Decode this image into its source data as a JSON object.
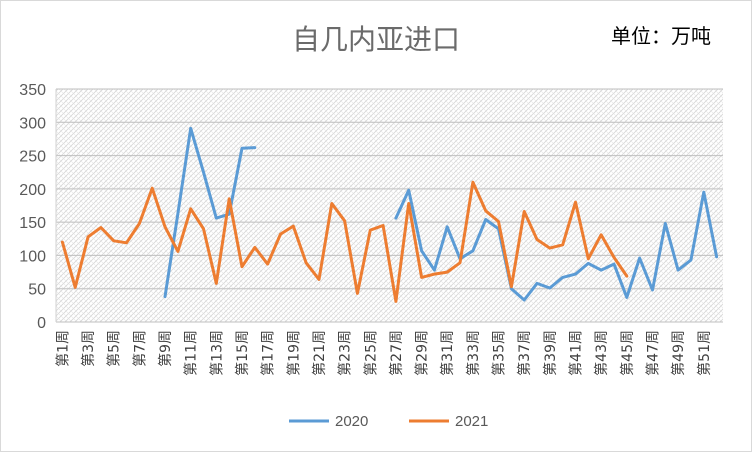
{
  "chart_data": {
    "type": "line",
    "title": "自几内亚进口",
    "unit_label": "单位：万吨",
    "ylim": [
      0,
      350
    ],
    "yticks": [
      0,
      50,
      100,
      150,
      200,
      250,
      300,
      350
    ],
    "grid": true,
    "legend_position": "bottom",
    "categories": [
      "第1周",
      "第2周",
      "第3周",
      "第4周",
      "第5周",
      "第6周",
      "第7周",
      "第8周",
      "第9周",
      "第10周",
      "第11周",
      "第12周",
      "第13周",
      "第14周",
      "第15周",
      "第16周",
      "第17周",
      "第18周",
      "第19周",
      "第20周",
      "第21周",
      "第22周",
      "第23周",
      "第24周",
      "第25周",
      "第26周",
      "第27周",
      "第28周",
      "第29周",
      "第30周",
      "第31周",
      "第32周",
      "第33周",
      "第34周",
      "第35周",
      "第36周",
      "第37周",
      "第38周",
      "第39周",
      "第40周",
      "第41周",
      "第42周",
      "第43周",
      "第44周",
      "第45周",
      "第46周",
      "第47周",
      "第48周",
      "第49周",
      "第50周",
      "第51周",
      "第52周"
    ],
    "xtick_labels": [
      "第1周",
      "第3周",
      "第5周",
      "第7周",
      "第9周",
      "第11周",
      "第13周",
      "第15周",
      "第17周",
      "第19周",
      "第21周",
      "第23周",
      "第25周",
      "第27周",
      "第29周",
      "第31周",
      "第33周",
      "第35周",
      "第37周",
      "第39周",
      "第41周",
      "第43周",
      "第45周",
      "第47周",
      "第49周",
      "第51周"
    ],
    "series": [
      {
        "name": "2020",
        "color": "#5b9bd5",
        "values": [
          null,
          null,
          null,
          null,
          null,
          null,
          null,
          null,
          38,
          163,
          291,
          225,
          156,
          162,
          261,
          262,
          null,
          null,
          null,
          null,
          null,
          null,
          null,
          null,
          null,
          null,
          156,
          198,
          107,
          78,
          143,
          95,
          107,
          154,
          140,
          50,
          33,
          58,
          51,
          67,
          72,
          88,
          78,
          87,
          37,
          96,
          48,
          148,
          78,
          93,
          195,
          98
        ]
      },
      {
        "name": "2021",
        "color": "#ed7d31",
        "values": [
          120,
          52,
          128,
          142,
          122,
          119,
          148,
          201,
          143,
          106,
          170,
          140,
          58,
          185,
          83,
          112,
          87,
          132,
          144,
          89,
          64,
          178,
          152,
          43,
          138,
          145,
          31,
          178,
          67,
          72,
          75,
          89,
          210,
          167,
          151,
          53,
          166,
          124,
          111,
          116,
          180,
          95,
          131,
          97,
          69,
          null,
          null,
          null,
          null,
          null,
          null,
          null
        ]
      }
    ]
  }
}
